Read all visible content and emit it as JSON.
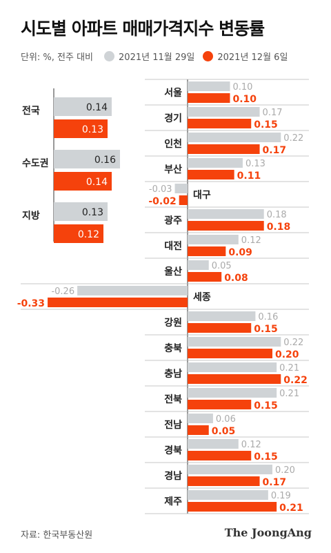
{
  "title": "시도별 아파트 매매가격지수 변동률",
  "legend": {
    "unit": "단위: %, 전주 대비",
    "prev_label": "2021년 11월 29일",
    "curr_label": "2021년 12월 6일",
    "prev_color": "#cfd3d6",
    "curr_color": "#f5420c"
  },
  "source": "자료: 한국부동산원",
  "brand": "The JoongAng",
  "chart_data": [
    {
      "type": "bar",
      "orientation": "horizontal",
      "categories": [
        "전국",
        "수도권",
        "지방"
      ],
      "series": [
        {
          "name": "2021년 11월 29일",
          "values": [
            0.14,
            0.16,
            0.13
          ]
        },
        {
          "name": "2021년 12월 6일",
          "values": [
            0.13,
            0.14,
            0.12
          ]
        }
      ]
    },
    {
      "type": "bar",
      "orientation": "horizontal",
      "categories": [
        "서울",
        "경기",
        "인천",
        "부산",
        "대구",
        "광주",
        "대전",
        "울산",
        "세종",
        "강원",
        "충북",
        "충남",
        "전북",
        "전남",
        "경북",
        "경남",
        "제주"
      ],
      "series": [
        {
          "name": "2021년 11월 29일",
          "values": [
            0.1,
            0.17,
            0.22,
            0.13,
            -0.03,
            0.18,
            0.12,
            0.05,
            -0.26,
            0.16,
            0.22,
            0.21,
            0.21,
            0.06,
            0.12,
            0.2,
            0.19
          ]
        },
        {
          "name": "2021년 12월 6일",
          "values": [
            0.1,
            0.15,
            0.17,
            0.11,
            -0.02,
            0.18,
            0.09,
            0.08,
            -0.33,
            0.15,
            0.2,
            0.22,
            0.15,
            0.05,
            0.15,
            0.17,
            0.21
          ]
        }
      ]
    }
  ]
}
